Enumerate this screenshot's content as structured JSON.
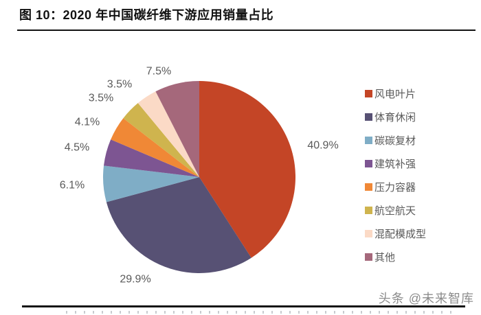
{
  "header": {
    "title": "图 10：2020 年中国碳纤维下游应用销量占比"
  },
  "chart_data": {
    "type": "pie",
    "title": "2020 年中国碳纤维下游应用销量占比",
    "categories": [
      "风电叶片",
      "体育休闲",
      "碳碳复材",
      "建筑补强",
      "压力容器",
      "航空航天",
      "混配模成型",
      "其他"
    ],
    "values": [
      40.9,
      29.9,
      6.1,
      4.5,
      4.1,
      3.5,
      3.5,
      7.5
    ],
    "unit": "%",
    "colors": [
      "#c44526",
      "#575174",
      "#7fadc6",
      "#7d5592",
      "#f08836",
      "#cfb44e",
      "#fbdac6",
      "#a5687b"
    ],
    "label_color": "#595959",
    "start_angle_deg": 0,
    "direction": "clockwise",
    "legend_position": "right",
    "data_labels": [
      "40.9%",
      "29.9%",
      "6.1%",
      "4.5%",
      "4.1%",
      "3.5%",
      "3.5%",
      "7.5%"
    ]
  },
  "watermark": {
    "text": "头条 @未来智库"
  }
}
